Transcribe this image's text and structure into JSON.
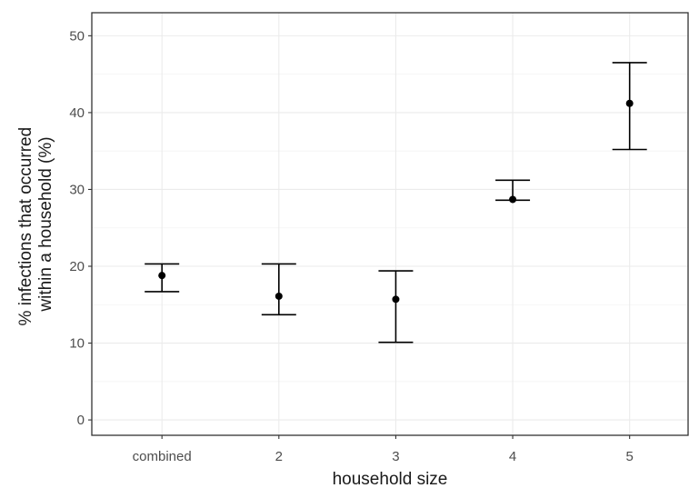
{
  "chart_data": {
    "type": "errorbar",
    "categories": [
      "combined",
      "2",
      "3",
      "4",
      "5"
    ],
    "series": [
      {
        "values": [
          18.8,
          16.1,
          15.7,
          28.7,
          41.2
        ],
        "lower": [
          16.7,
          13.7,
          10.1,
          28.6,
          35.2
        ],
        "upper": [
          20.3,
          20.3,
          19.4,
          31.2,
          46.5
        ]
      }
    ],
    "xlabel": "household size",
    "ylabel_lines": [
      "% infections that occurred",
      "within a household (%)"
    ],
    "ylim": [
      -2,
      53
    ],
    "yticks": [
      0,
      10,
      20,
      30,
      40,
      50
    ],
    "grid": true,
    "colors": {
      "points": "#000000",
      "gridlines": "#ebebeb",
      "panel_border": "#333333"
    }
  }
}
